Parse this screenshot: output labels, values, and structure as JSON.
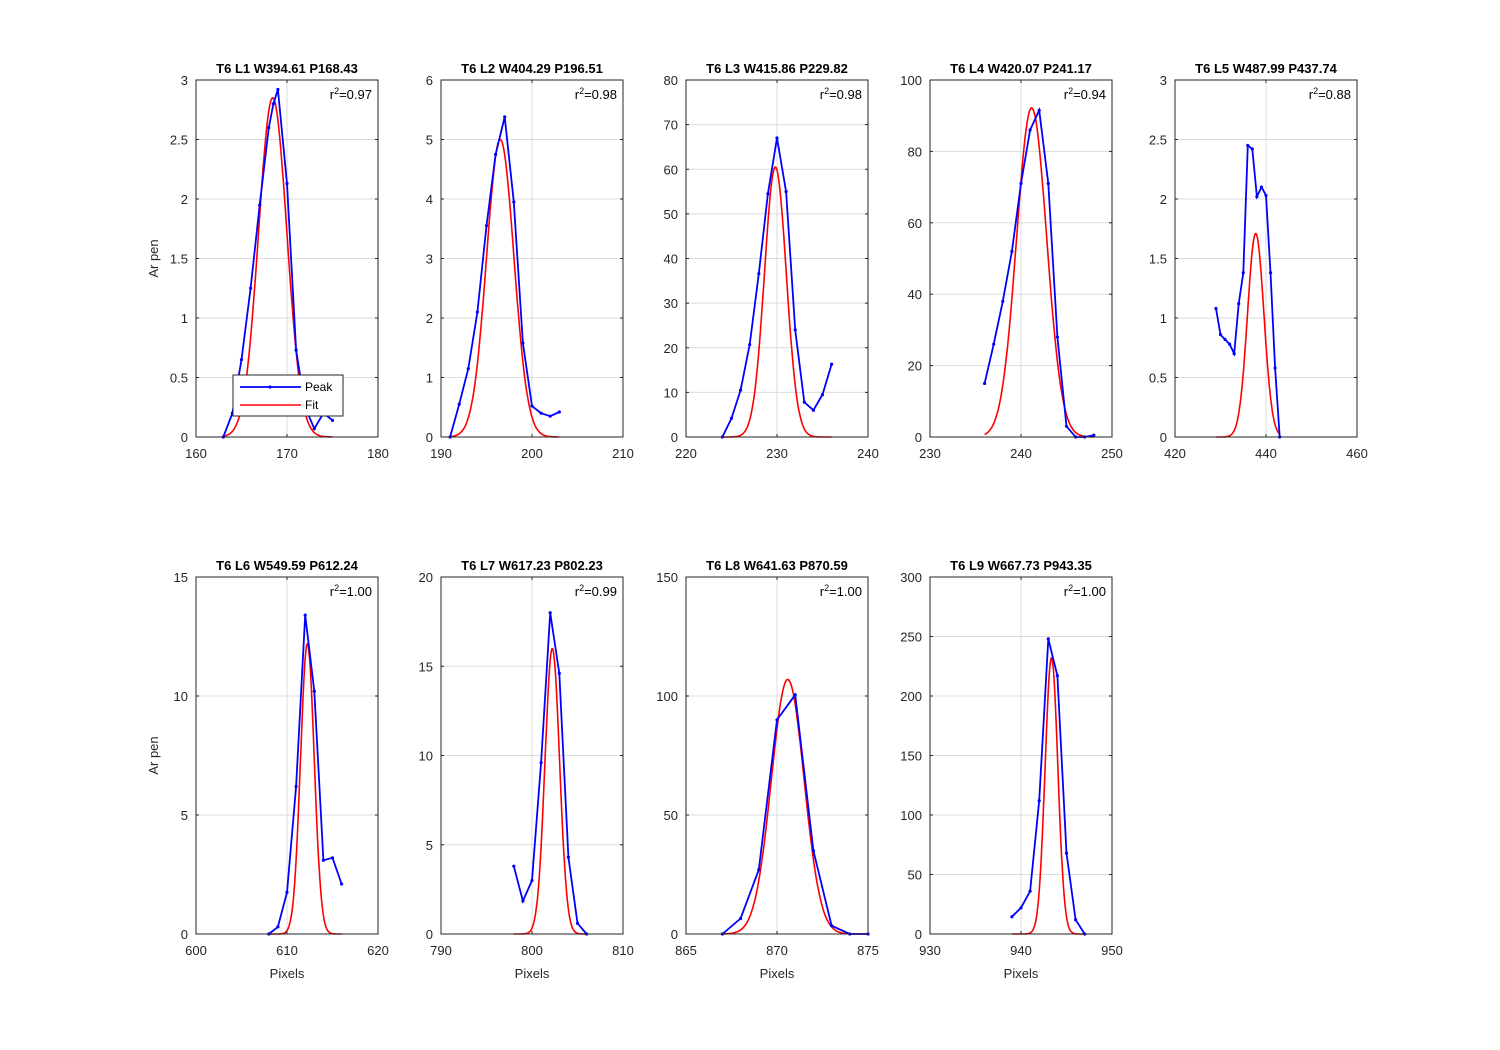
{
  "figure": {
    "ylabel_text": "Ar pen",
    "xlabel_text": "Pixels",
    "legend": {
      "peak_label": "Peak",
      "fit_label": "Fit"
    },
    "colors": {
      "peak": "#0000ff",
      "fit": "#ff0000",
      "grid": "#dcdcdc",
      "axis": "#262626"
    }
  },
  "chart_data": [
    {
      "type": "line",
      "title": "T6 L1 W394.61 P168.43",
      "r2": "=0.97",
      "xlim": [
        160,
        180
      ],
      "ylim": [
        0,
        3
      ],
      "xticks": [
        "160",
        "170",
        "180"
      ],
      "yticks": [
        "0",
        "0.5",
        "1",
        "1.5",
        "2",
        "2.5",
        "3"
      ],
      "vline": 170,
      "ylabel": "Ar pen",
      "xlabel": "",
      "legend": "bottom-left",
      "series": [
        {
          "name": "Peak",
          "x": [
            163,
            164,
            165,
            166,
            167,
            168,
            168.5,
            169,
            170,
            171,
            172,
            173,
            174,
            175
          ],
          "y": [
            0,
            0.2,
            0.65,
            1.25,
            1.95,
            2.6,
            2.8,
            2.92,
            2.13,
            0.73,
            0.25,
            0.07,
            0.2,
            0.14
          ]
        },
        {
          "name": "Fit",
          "gauss": {
            "a": 2.85,
            "mu": 168.43,
            "sigma": 1.55,
            "from": 163,
            "to": 175
          }
        }
      ]
    },
    {
      "type": "line",
      "title": "T6 L2 W404.29 P196.51",
      "r2": "=0.98",
      "xlim": [
        190,
        210
      ],
      "ylim": [
        0,
        6
      ],
      "xticks": [
        "190",
        "200",
        "210"
      ],
      "yticks": [
        "0",
        "1",
        "2",
        "3",
        "4",
        "5",
        "6"
      ],
      "vline": 200,
      "ylabel": "",
      "xlabel": "",
      "series": [
        {
          "name": "Peak",
          "x": [
            191,
            192,
            193,
            194,
            195,
            196,
            197,
            198,
            199,
            200,
            201,
            202,
            203
          ],
          "y": [
            0,
            0.55,
            1.15,
            2.1,
            3.55,
            4.75,
            5.38,
            3.95,
            1.58,
            0.52,
            0.4,
            0.35,
            0.42
          ]
        },
        {
          "name": "Fit",
          "gauss": {
            "a": 5.0,
            "mu": 196.51,
            "sigma": 1.5,
            "from": 191,
            "to": 203
          }
        }
      ]
    },
    {
      "type": "line",
      "title": "T6 L3 W415.86 P229.82",
      "r2": "=0.98",
      "xlim": [
        220,
        240
      ],
      "ylim": [
        0,
        80
      ],
      "xticks": [
        "220",
        "230",
        "240"
      ],
      "yticks": [
        "0",
        "10",
        "20",
        "30",
        "40",
        "50",
        "60",
        "70",
        "80"
      ],
      "vline": 230,
      "ylabel": "",
      "xlabel": "",
      "series": [
        {
          "name": "Peak",
          "x": [
            224,
            225,
            226,
            227,
            228,
            229,
            230,
            231,
            232,
            233,
            234,
            235,
            236
          ],
          "y": [
            0,
            4.2,
            10.5,
            20.7,
            36.6,
            54.5,
            67,
            55,
            24,
            7.8,
            6,
            9.5,
            16.3
          ]
        },
        {
          "name": "Fit",
          "gauss": {
            "a": 60.5,
            "mu": 229.82,
            "sigma": 1.2,
            "from": 224,
            "to": 236
          }
        }
      ]
    },
    {
      "type": "line",
      "title": "T6 L4 W420.07 P241.17",
      "r2": "=0.94",
      "xlim": [
        230,
        250
      ],
      "ylim": [
        0,
        100
      ],
      "xticks": [
        "230",
        "240",
        "250"
      ],
      "yticks": [
        "0",
        "20",
        "40",
        "60",
        "80",
        "100"
      ],
      "vline": 240,
      "ylabel": "",
      "xlabel": "",
      "series": [
        {
          "name": "Peak",
          "x": [
            236,
            237,
            238,
            239,
            240,
            241,
            242,
            243,
            244,
            245,
            246,
            247,
            248
          ],
          "y": [
            15,
            26,
            38,
            52,
            71,
            86,
            91.5,
            71,
            28,
            3,
            0,
            0,
            0.5
          ]
        },
        {
          "name": "Fit",
          "gauss": {
            "a": 92.2,
            "mu": 241.17,
            "sigma": 1.65,
            "from": 236,
            "to": 248
          }
        }
      ]
    },
    {
      "type": "line",
      "title": "T6 L5 W487.99 P437.74",
      "r2": "=0.88",
      "xlim": [
        420,
        460
      ],
      "ylim": [
        0,
        3
      ],
      "xticks": [
        "420",
        "440",
        "460"
      ],
      "yticks": [
        "0",
        "0.5",
        "1",
        "1.5",
        "2",
        "2.5",
        "3"
      ],
      "vline": 440,
      "ylabel": "",
      "xlabel": "",
      "series": [
        {
          "name": "Peak",
          "x": [
            429,
            430,
            431,
            432,
            433,
            434,
            435,
            436,
            437,
            438,
            439,
            440,
            441,
            442,
            443
          ],
          "y": [
            1.08,
            0.86,
            0.82,
            0.78,
            0.7,
            1.12,
            1.38,
            2.45,
            2.42,
            2.02,
            2.1,
            2.03,
            1.38,
            0.58,
            0
          ]
        },
        {
          "name": "Fit",
          "gauss": {
            "a": 1.71,
            "mu": 437.74,
            "sigma": 1.8,
            "from": 429,
            "to": 443
          }
        }
      ]
    },
    {
      "type": "line",
      "title": "T6 L6 W549.59 P612.24",
      "r2": "=1.00",
      "xlim": [
        600,
        620
      ],
      "ylim": [
        0,
        15
      ],
      "xticks": [
        "600",
        "610",
        "620"
      ],
      "yticks": [
        "0",
        "5",
        "10",
        "15"
      ],
      "vline": 610,
      "ylabel": "Ar pen",
      "xlabel": "Pixels",
      "series": [
        {
          "name": "Peak",
          "x": [
            608,
            609,
            610,
            611,
            612,
            613,
            614,
            615,
            616
          ],
          "y": [
            0,
            0.3,
            1.75,
            6.2,
            13.4,
            10.2,
            3.1,
            3.2,
            2.1
          ]
        },
        {
          "name": "Fit",
          "gauss": {
            "a": 12.2,
            "mu": 612.24,
            "sigma": 0.75,
            "from": 608,
            "to": 616
          }
        }
      ]
    },
    {
      "type": "line",
      "title": "T6 L7 W617.23 P802.23",
      "r2": "=0.99",
      "xlim": [
        790,
        810
      ],
      "ylim": [
        0,
        20
      ],
      "xticks": [
        "790",
        "800",
        "810"
      ],
      "yticks": [
        "0",
        "5",
        "10",
        "15",
        "20"
      ],
      "vline": 800,
      "ylabel": "",
      "xlabel": "Pixels",
      "series": [
        {
          "name": "Peak",
          "x": [
            798,
            799,
            800,
            801,
            802,
            803,
            804,
            805,
            806
          ],
          "y": [
            3.8,
            1.85,
            3.0,
            9.6,
            18.0,
            14.6,
            4.3,
            0.6,
            0
          ]
        },
        {
          "name": "Fit",
          "gauss": {
            "a": 16.0,
            "mu": 802.23,
            "sigma": 0.8,
            "from": 798,
            "to": 806
          }
        }
      ]
    },
    {
      "type": "line",
      "title": "T6 L8 W641.63 P870.59",
      "r2": "=1.00",
      "xlim": [
        865,
        875
      ],
      "ylim": [
        0,
        150
      ],
      "xticks": [
        "865",
        "870",
        "875"
      ],
      "yticks": [
        "0",
        "50",
        "100",
        "150"
      ],
      "vline": 870,
      "ylabel": "",
      "xlabel": "Pixels",
      "series": [
        {
          "name": "Peak",
          "x": [
            867,
            868,
            869,
            870,
            871,
            872,
            873,
            874,
            875
          ],
          "y": [
            0,
            6.5,
            27,
            90,
            100.5,
            35,
            3.5,
            0,
            0
          ]
        },
        {
          "name": "Fit",
          "gauss": {
            "a": 107,
            "mu": 870.59,
            "sigma": 0.9,
            "from": 867,
            "to": 875
          }
        }
      ]
    },
    {
      "type": "line",
      "title": "T6 L9 W667.73 P943.35",
      "r2": "=1.00",
      "xlim": [
        930,
        950
      ],
      "ylim": [
        0,
        300
      ],
      "xticks": [
        "930",
        "940",
        "950"
      ],
      "yticks": [
        "0",
        "50",
        "100",
        "150",
        "200",
        "250",
        "300"
      ],
      "vline": 940,
      "ylabel": "",
      "xlabel": "Pixels",
      "series": [
        {
          "name": "Peak",
          "x": [
            939,
            940,
            941,
            942,
            943,
            944,
            945,
            946,
            947
          ],
          "y": [
            14.5,
            22,
            36,
            112,
            248,
            217,
            68,
            12,
            0
          ]
        },
        {
          "name": "Fit",
          "gauss": {
            "a": 232,
            "mu": 943.35,
            "sigma": 0.7,
            "from": 939,
            "to": 947
          }
        }
      ]
    }
  ]
}
